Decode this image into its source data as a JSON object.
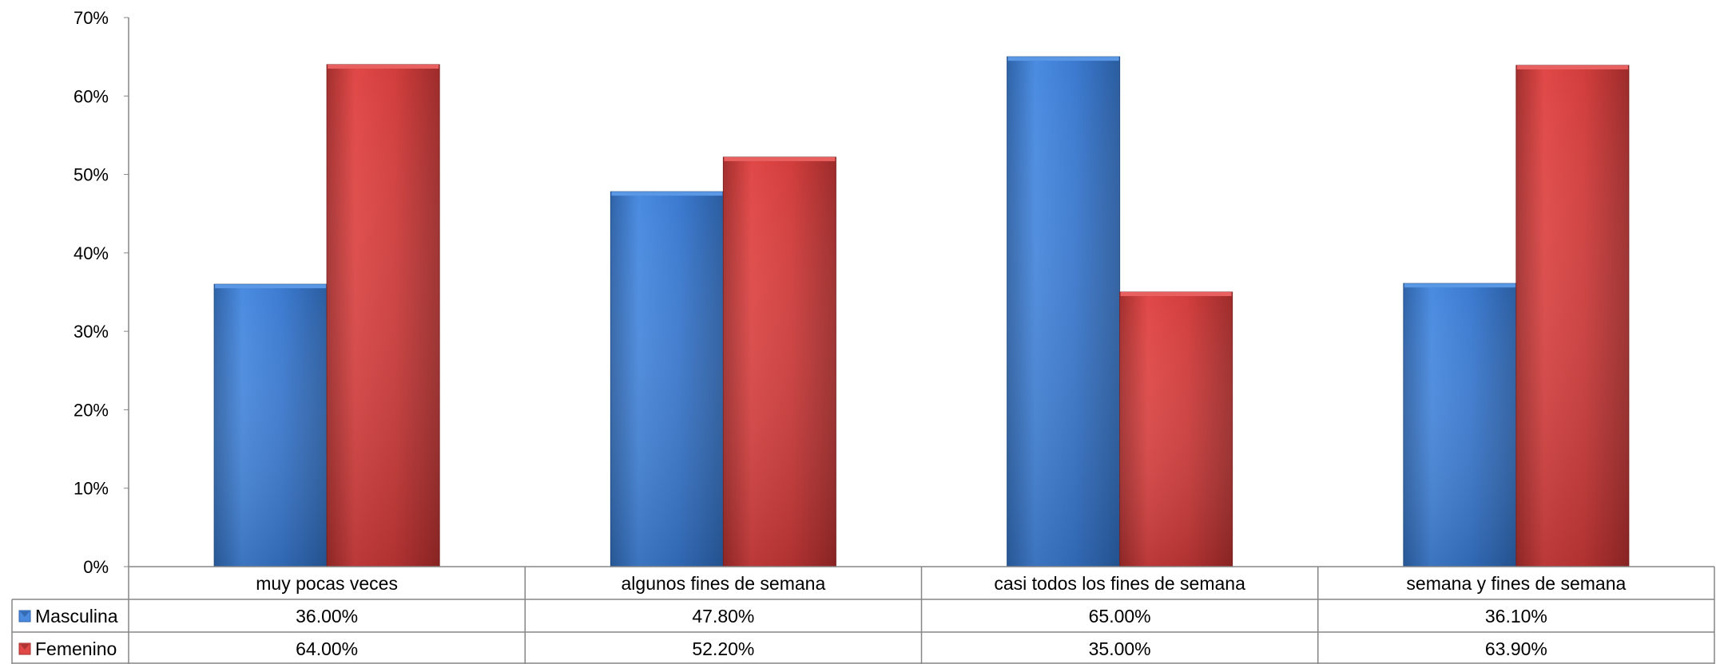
{
  "chart_data": {
    "type": "bar",
    "categories": [
      "muy pocas veces",
      "algunos fines de semana",
      "casi todos los fines de semana",
      "semana y fines de semana"
    ],
    "series": [
      {
        "name": "Masculina",
        "values": [
          0.36,
          0.478,
          0.65,
          0.361
        ],
        "labels": [
          "36.00%",
          "47.80%",
          "65.00%",
          "36.10%"
        ],
        "color": "#3f7fd3"
      },
      {
        "name": "Femenino",
        "values": [
          0.64,
          0.522,
          0.35,
          0.639
        ],
        "labels": [
          "64.00%",
          "52.20%",
          "35.00%",
          "63.90%"
        ],
        "color": "#d9403f"
      }
    ],
    "yticks": [
      {
        "value": 0.0,
        "label": "0%"
      },
      {
        "value": 0.1,
        "label": "10%"
      },
      {
        "value": 0.2,
        "label": "20%"
      },
      {
        "value": 0.3,
        "label": "30%"
      },
      {
        "value": 0.4,
        "label": "40%"
      },
      {
        "value": 0.5,
        "label": "50%"
      },
      {
        "value": 0.6,
        "label": "60%"
      },
      {
        "value": 0.7,
        "label": "70%"
      }
    ],
    "ylim": [
      0,
      0.7
    ],
    "grid": false,
    "legend": "data-table-left"
  }
}
